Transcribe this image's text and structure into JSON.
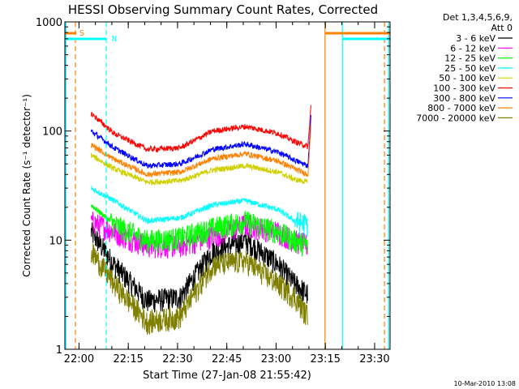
{
  "chart_data": {
    "type": "line",
    "title": "HESSI Observing Summary Count Rates, Corrected",
    "xlabel": "Start Time (27-Jan-08 21:55:42)",
    "ylabel": "Corrected Count Rate (s⁻¹ detector⁻¹)",
    "ylog": true,
    "ylim": [
      1,
      1000
    ],
    "xlim": [
      "21:55:42",
      "23:34:42"
    ],
    "x_ticks": [
      "22:00",
      "22:15",
      "22:30",
      "22:45",
      "23:00",
      "23:15",
      "23:30"
    ],
    "y_ticks": [
      "1",
      "10",
      "100",
      "1000"
    ],
    "legend_header": [
      "Det 1,3,4,5,6,9,",
      "Att 0"
    ],
    "legend_position": "right",
    "timestamp": "10-Mar-2010 13:08",
    "x_minutes": [
      0,
      5,
      8,
      15,
      25,
      35,
      45,
      55,
      65,
      70,
      74,
      75
    ],
    "series": [
      {
        "name": "3 - 6 keV",
        "color": "#000000",
        "values": [
          null,
          null,
          12,
          6,
          2.8,
          3.0,
          8,
          10,
          6,
          4,
          3.2,
          null
        ]
      },
      {
        "name": "6 - 12 keV",
        "color": "#ff00ff",
        "values": [
          null,
          null,
          15,
          12,
          9,
          9,
          11,
          14,
          12,
          10,
          9,
          null
        ]
      },
      {
        "name": "12 - 25 keV",
        "color": "#00ff00",
        "values": [
          null,
          null,
          21,
          14,
          10,
          10.5,
          13,
          15,
          12,
          10,
          9,
          null
        ]
      },
      {
        "name": "25 - 50 keV",
        "color": "#00ffff",
        "values": [
          null,
          null,
          30,
          23,
          15,
          16,
          21,
          23,
          19,
          15,
          14,
          null
        ]
      },
      {
        "name": "50 - 100 keV",
        "color": "#d0d000",
        "values": [
          null,
          null,
          60,
          45,
          34,
          35,
          44,
          48,
          42,
          36,
          34,
          null
        ]
      },
      {
        "name": "100 - 300 keV",
        "color": "#ff0000",
        "values": [
          null,
          null,
          145,
          95,
          68,
          70,
          100,
          110,
          95,
          80,
          72,
          185
        ]
      },
      {
        "name": "300 - 800 keV",
        "color": "#0000ff",
        "values": [
          null,
          null,
          100,
          70,
          48,
          50,
          68,
          76,
          64,
          54,
          48,
          150
        ]
      },
      {
        "name": "800 - 7000 keV",
        "color": "#ff8000",
        "values": [
          null,
          null,
          75,
          55,
          40,
          42,
          56,
          62,
          53,
          45,
          40,
          120
        ]
      },
      {
        "name": "7000 - 20000 keV",
        "color": "#808000",
        "values": [
          null,
          null,
          8,
          4,
          1.8,
          2,
          6,
          6.5,
          4,
          3,
          2,
          null
        ]
      }
    ],
    "flags": [
      {
        "label": "S",
        "color": "#ff8000"
      },
      {
        "label": "N",
        "color": "#00ffff"
      }
    ]
  }
}
